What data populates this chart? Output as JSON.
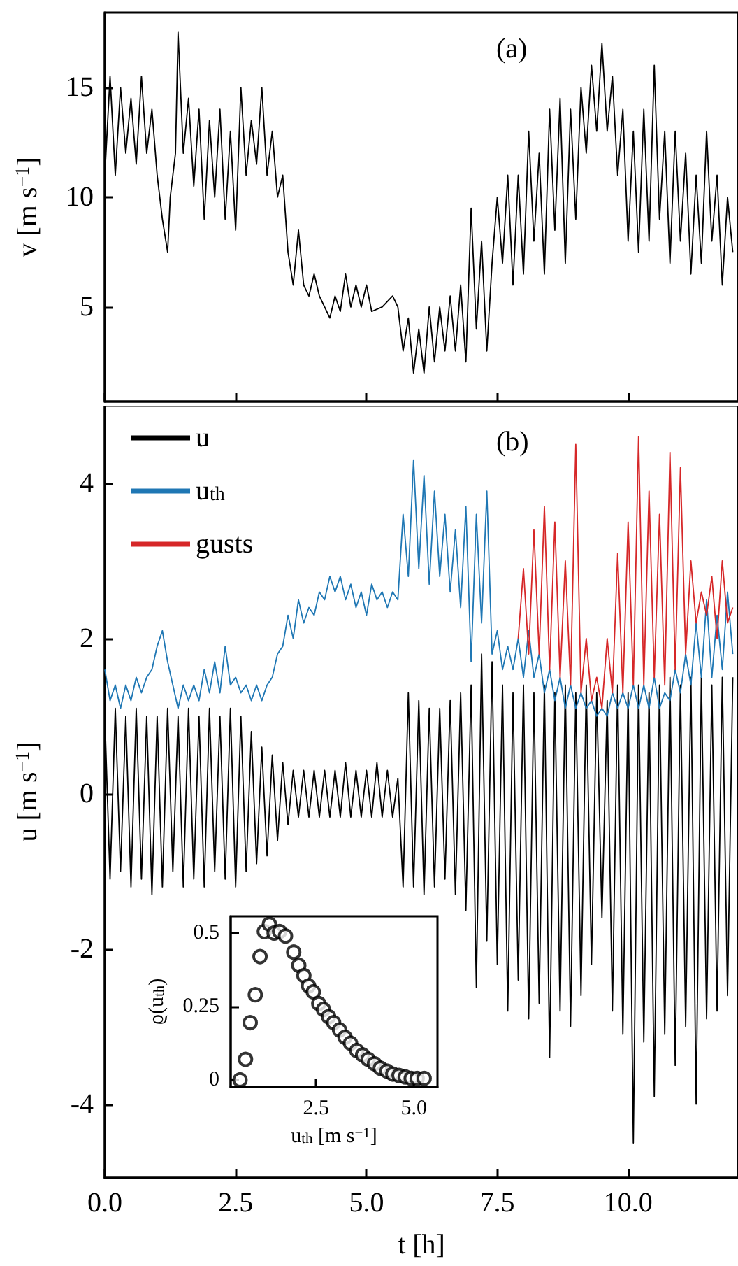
{
  "chart_data": [
    {
      "type": "line",
      "ylabel": "v [m s$^{−1}$]",
      "annotations": [
        "(a)"
      ],
      "xlim": [
        0,
        12.1
      ],
      "ylim": [
        0.7,
        18.4
      ],
      "xticks": [
        0,
        2.5,
        5,
        7.5,
        10
      ],
      "yticks": [
        5,
        10,
        15
      ],
      "tick_labels": "y",
      "x": [
        0,
        0.1,
        0.2,
        0.3,
        0.4,
        0.5,
        0.6,
        0.7,
        0.8,
        0.9,
        1.0,
        1.1,
        1.2,
        1.25,
        1.35,
        1.4,
        1.5,
        1.6,
        1.7,
        1.8,
        1.9,
        2.0,
        2.1,
        2.2,
        2.3,
        2.4,
        2.5,
        2.6,
        2.7,
        2.8,
        2.9,
        3.0,
        3.1,
        3.2,
        3.3,
        3.4,
        3.5,
        3.6,
        3.7,
        3.8,
        3.9,
        4.0,
        4.1,
        4.2,
        4.3,
        4.4,
        4.5,
        4.6,
        4.7,
        4.8,
        4.9,
        5.0,
        5.1,
        5.3,
        5.5,
        5.6,
        5.7,
        5.8,
        5.9,
        6.0,
        6.1,
        6.2,
        6.3,
        6.4,
        6.5,
        6.6,
        6.7,
        6.8,
        6.9,
        7.0,
        7.1,
        7.2,
        7.3,
        7.4,
        7.5,
        7.6,
        7.7,
        7.8,
        7.9,
        8.0,
        8.1,
        8.2,
        8.3,
        8.4,
        8.5,
        8.6,
        8.7,
        8.8,
        8.9,
        9.0,
        9.1,
        9.2,
        9.3,
        9.4,
        9.5,
        9.6,
        9.7,
        9.8,
        9.9,
        10.0,
        10.1,
        10.2,
        10.3,
        10.4,
        10.5,
        10.6,
        10.7,
        10.8,
        10.9,
        11.0,
        11.1,
        11.2,
        11.3,
        11.4,
        11.5,
        11.6,
        11.7,
        11.8,
        11.9,
        12.0
      ],
      "series": [
        {
          "color": "#000000",
          "values": [
            11,
            15.5,
            11,
            15,
            12,
            14.5,
            11.5,
            15.5,
            12,
            14,
            11,
            9,
            7.5,
            10,
            12,
            17.5,
            12,
            14.5,
            10.5,
            14,
            9,
            13.5,
            10,
            14,
            9,
            13,
            8.5,
            15,
            11,
            13.5,
            11.5,
            15,
            11,
            13,
            10,
            11,
            7.5,
            6,
            8.5,
            6,
            5.5,
            6.5,
            5.5,
            5,
            4.5,
            5.5,
            4.8,
            6.5,
            5,
            6,
            5,
            6,
            4.8,
            5,
            5.5,
            5,
            3,
            4.5,
            2,
            4,
            2,
            5,
            2.5,
            5,
            3,
            5.5,
            3,
            6,
            2.5,
            9.5,
            4,
            8,
            3,
            7,
            10,
            7,
            11,
            6,
            11,
            6.5,
            13,
            8,
            12,
            6.5,
            14,
            8.5,
            14.5,
            7,
            14,
            9,
            15,
            12,
            16,
            13,
            17,
            13,
            15.5,
            11,
            14,
            8,
            13,
            7.5,
            14,
            8,
            16,
            9,
            13,
            7,
            13,
            8,
            12,
            6.5,
            11,
            7,
            13,
            8,
            11,
            6,
            10,
            7.5
          ]
        }
      ]
    },
    {
      "type": "line",
      "xlabel": "t [h]",
      "ylabel": "u [m s$^{−1}$]",
      "annotations": [
        "(b)"
      ],
      "legend": "top left",
      "xlim": [
        0,
        12.1
      ],
      "ylim": [
        -4.95,
        5.0
      ],
      "xticks": [
        {
          "value": 0,
          "label": "0.0"
        },
        {
          "value": 2.5,
          "label": "2.5"
        },
        {
          "value": 5,
          "label": "5.0"
        },
        {
          "value": 7.5,
          "label": "7.5"
        },
        {
          "value": 10,
          "label": "10.0"
        }
      ],
      "yticks": [
        -4,
        -2,
        0,
        2,
        4
      ],
      "x": [
        0,
        0.1,
        0.2,
        0.3,
        0.4,
        0.5,
        0.6,
        0.7,
        0.8,
        0.9,
        1.0,
        1.1,
        1.2,
        1.3,
        1.4,
        1.5,
        1.6,
        1.7,
        1.8,
        1.9,
        2.0,
        2.1,
        2.2,
        2.3,
        2.4,
        2.5,
        2.6,
        2.7,
        2.8,
        2.9,
        3.0,
        3.1,
        3.2,
        3.3,
        3.4,
        3.5,
        3.6,
        3.7,
        3.8,
        3.9,
        4.0,
        4.1,
        4.2,
        4.3,
        4.4,
        4.5,
        4.6,
        4.7,
        4.8,
        4.9,
        5.0,
        5.1,
        5.2,
        5.3,
        5.4,
        5.5,
        5.6,
        5.7,
        5.8,
        5.9,
        6.0,
        6.1,
        6.2,
        6.3,
        6.4,
        6.5,
        6.6,
        6.7,
        6.8,
        6.9,
        7.0,
        7.1,
        7.2,
        7.3,
        7.4,
        7.5,
        7.6,
        7.7,
        7.8,
        7.9,
        8.0,
        8.1,
        8.2,
        8.3,
        8.4,
        8.5,
        8.6,
        8.7,
        8.8,
        8.9,
        9.0,
        9.1,
        9.2,
        9.3,
        9.4,
        9.5,
        9.6,
        9.7,
        9.8,
        9.9,
        10.0,
        10.1,
        10.2,
        10.3,
        10.4,
        10.5,
        10.6,
        10.7,
        10.8,
        10.9,
        11.0,
        11.1,
        11.2,
        11.3,
        11.4,
        11.5,
        11.6,
        11.7,
        11.8,
        11.9,
        12.0
      ],
      "series": [
        {
          "name": "u",
          "color": "#000000",
          "values": [
            1.0,
            -1.1,
            1.1,
            -1.0,
            1.0,
            -1.2,
            1.1,
            -1.1,
            1.0,
            -1.3,
            1.0,
            -1.2,
            1.1,
            -1.0,
            1.0,
            -1.2,
            1.1,
            -1.1,
            1.0,
            -1.2,
            1.1,
            -1.0,
            1.0,
            -1.1,
            1.1,
            -1.2,
            1.0,
            -1.0,
            0.8,
            -0.9,
            0.6,
            -0.8,
            0.5,
            -0.6,
            0.4,
            -0.4,
            0.3,
            -0.3,
            0.3,
            -0.3,
            0.3,
            -0.3,
            0.3,
            -0.3,
            0.3,
            -0.3,
            0.4,
            -0.3,
            0.3,
            -0.3,
            0.3,
            -0.3,
            0.4,
            -0.3,
            0.3,
            -0.3,
            0.2,
            -1.2,
            1.3,
            -1.2,
            1.2,
            -1.3,
            1.1,
            -1.2,
            1.1,
            -1.1,
            1.2,
            -1.3,
            1.3,
            -1.5,
            1.4,
            -2.5,
            1.8,
            -1.9,
            1.7,
            -2.2,
            1.4,
            -2.8,
            1.3,
            -2.4,
            1.4,
            -2.9,
            1.3,
            -2.7,
            1.4,
            -3.4,
            1.3,
            -2.8,
            1.4,
            -3.0,
            1.3,
            -2.6,
            1.4,
            -2.2,
            1.3,
            -1.6,
            1.2,
            -2.8,
            1.4,
            -3.1,
            1.3,
            -4.5,
            1.4,
            -3.2,
            1.3,
            -3.9,
            1.4,
            -3.1,
            1.5,
            -3.5,
            1.4,
            -3.0,
            1.5,
            -4.0,
            1.5,
            -2.9,
            1.4,
            -2.8,
            1.5,
            -2.6,
            1.5
          ]
        },
        {
          "name": "u$_{th}$",
          "color": "#1f77b4",
          "values": [
            1.6,
            1.2,
            1.4,
            1.1,
            1.4,
            1.2,
            1.5,
            1.3,
            1.5,
            1.6,
            1.9,
            2.1,
            1.7,
            1.4,
            1.1,
            1.4,
            1.2,
            1.4,
            1.2,
            1.6,
            1.3,
            1.7,
            1.3,
            1.9,
            1.4,
            1.5,
            1.3,
            1.4,
            1.2,
            1.4,
            1.2,
            1.4,
            1.5,
            1.8,
            1.9,
            2.3,
            2.0,
            2.5,
            2.2,
            2.4,
            2.3,
            2.6,
            2.5,
            2.8,
            2.6,
            2.8,
            2.5,
            2.7,
            2.4,
            2.6,
            2.3,
            2.7,
            2.5,
            2.6,
            2.4,
            2.6,
            2.5,
            3.6,
            2.8,
            4.3,
            2.9,
            4.1,
            2.7,
            3.9,
            2.8,
            3.6,
            2.6,
            3.4,
            2.4,
            3.7,
            1.7,
            3.6,
            2.2,
            3.9,
            1.8,
            2.1,
            1.6,
            1.9,
            1.6,
            2.0,
            1.5,
            2.1,
            1.5,
            1.8,
            1.3,
            1.6,
            1.2,
            1.5,
            1.1,
            1.4,
            1.1,
            1.3,
            1.1,
            1.2,
            1.0,
            1.1,
            1.0,
            1.3,
            1.1,
            1.3,
            1.1,
            1.4,
            1.1,
            1.4,
            1.1,
            1.5,
            1.1,
            1.3,
            1.2,
            1.6,
            1.3,
            1.8,
            1.4,
            2.2,
            1.5,
            2.5,
            1.5,
            2.3,
            1.6,
            2.6,
            1.8
          ]
        },
        {
          "name": "gusts",
          "color": "#d62728",
          "x": [
            7.9,
            8.0,
            8.1,
            8.2,
            8.3,
            8.4,
            8.5,
            8.6,
            8.7,
            8.8,
            8.9,
            9.0,
            9.1,
            9.2,
            9.3,
            9.4,
            9.5,
            9.6,
            9.7,
            9.8,
            9.9,
            10.0,
            10.1,
            10.2,
            10.3,
            10.4,
            10.5,
            10.6,
            10.7,
            10.8,
            10.9,
            11.0,
            11.1,
            11.2,
            11.3,
            11.4,
            11.5,
            11.6,
            11.7,
            11.8,
            11.9,
            12.0
          ],
          "values": [
            2.0,
            2.9,
            1.8,
            3.4,
            1.8,
            3.7,
            1.6,
            3.5,
            1.5,
            3.0,
            1.4,
            4.5,
            1.3,
            2.0,
            1.2,
            1.5,
            1.1,
            2.0,
            1.3,
            3.1,
            1.3,
            3.5,
            1.4,
            4.6,
            1.4,
            3.9,
            1.5,
            3.6,
            1.4,
            4.4,
            1.6,
            4.2,
            1.8,
            3.0,
            2.2,
            2.6,
            2.3,
            2.8,
            2.0,
            3.0,
            2.2,
            2.4
          ]
        }
      ]
    },
    {
      "type": "scatter",
      "xlabel": "u$_{th}$ [m s$^{−1}$]",
      "ylabel": "ϱ(u$_{th}$)",
      "marker": "circle",
      "xlim": [
        0.32,
        5.6
      ],
      "ylim": [
        -0.024,
        0.557
      ],
      "xticks": [
        2.5,
        {
          "value": 5,
          "label": "5.0"
        }
      ],
      "yticks": [
        0,
        0.25,
        0.5
      ],
      "x": [
        0.56,
        0.7,
        0.82,
        0.95,
        1.07,
        1.18,
        1.31,
        1.43,
        1.57,
        1.72,
        1.93,
        2.06,
        2.19,
        2.31,
        2.43,
        2.57,
        2.69,
        2.82,
        2.95,
        3.1,
        3.24,
        3.38,
        3.54,
        3.69,
        3.83,
        3.99,
        4.14,
        4.31,
        4.46,
        4.62,
        4.78,
        4.93,
        5.08,
        5.26
      ],
      "series": [
        {
          "color": "#000000",
          "values": [
            0.0,
            0.07,
            0.195,
            0.29,
            0.42,
            0.505,
            0.53,
            0.5,
            0.505,
            0.49,
            0.435,
            0.39,
            0.355,
            0.32,
            0.3,
            0.26,
            0.24,
            0.215,
            0.195,
            0.17,
            0.145,
            0.125,
            0.1,
            0.085,
            0.07,
            0.055,
            0.04,
            0.03,
            0.02,
            0.015,
            0.01,
            0.005,
            0.005,
            0.005
          ]
        }
      ]
    }
  ]
}
